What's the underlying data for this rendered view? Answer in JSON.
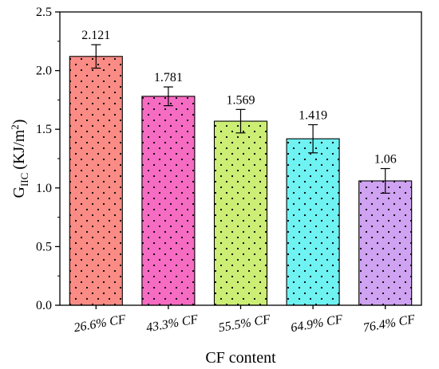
{
  "chart_data": {
    "type": "bar",
    "categories": [
      "26.6% CF",
      "43.3% CF",
      "55.5% CF",
      "64.9% CF",
      "76.4% CF"
    ],
    "values": [
      2.121,
      1.781,
      1.569,
      1.419,
      1.06
    ],
    "errors": [
      0.1,
      0.08,
      0.1,
      0.12,
      0.105
    ],
    "data_labels": [
      "2.121",
      "1.781",
      "1.569",
      "1.419",
      "1.06"
    ],
    "xlabel": "CF content",
    "ylabel": {
      "main": "G",
      "subscript": "IIC",
      "unit": "(KJ/m",
      "superscript": "2",
      "close": ")"
    },
    "ylim": [
      0,
      2.5
    ],
    "yticks": [
      "0.0",
      "0.5",
      "1.0",
      "1.5",
      "2.0",
      "2.5"
    ],
    "bar_colors": [
      "#fa8c85",
      "#f66cc3",
      "#cdee75",
      "#6ff2f2",
      "#cfa2f2"
    ],
    "bar_pattern": "dots",
    "grid": false,
    "legend": "none"
  }
}
